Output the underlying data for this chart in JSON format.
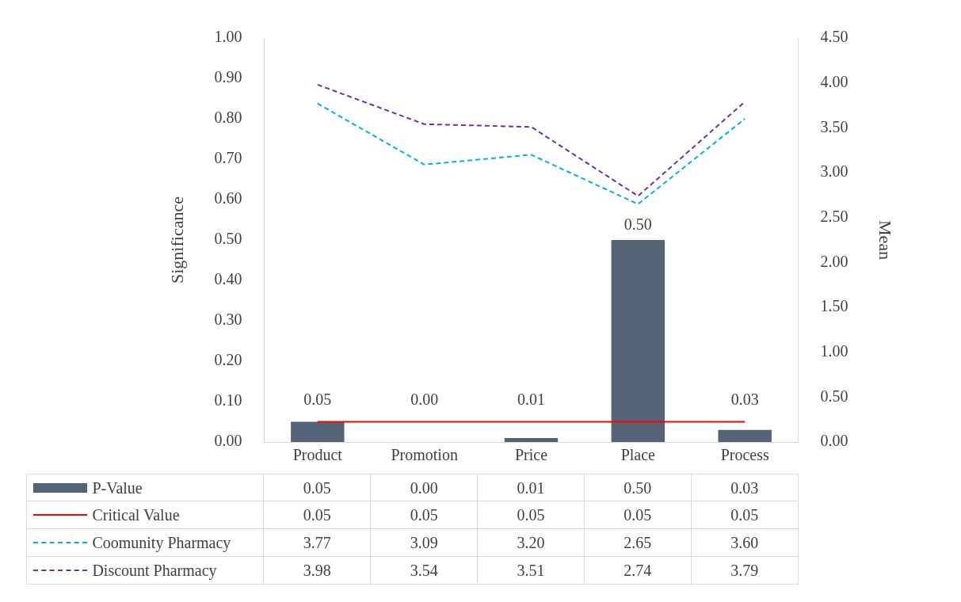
{
  "chart_data": {
    "type": "bar",
    "ylabel": "Significance",
    "y2label": "Mean",
    "categories": [
      "Product",
      "Promotion",
      "Price",
      "Place",
      "Process"
    ],
    "series": [
      {
        "name": "P-Value",
        "color": "#546375",
        "values": [
          0.05,
          0.0,
          0.01,
          0.5,
          0.03
        ],
        "value_labels": [
          "0.05",
          "0.00",
          "0.01",
          "0.50",
          "0.03"
        ]
      },
      {
        "name": "Critical Value",
        "type": "line",
        "color": "#ff0000",
        "line_style": "solid",
        "values": [
          0.05,
          0.05,
          0.05,
          0.05,
          0.05
        ],
        "value_labels": [
          "0.05",
          "0.05",
          "0.05",
          "0.05",
          "0.05"
        ]
      },
      {
        "name": "Coomunity Pharmacy",
        "type": "line",
        "axis": "y2",
        "color": "#00b0f0",
        "line_style": "dashed",
        "values": [
          3.77,
          3.09,
          3.2,
          2.65,
          3.6
        ],
        "value_labels": [
          "3.77",
          "3.09",
          "3.20",
          "2.65",
          "3.60"
        ]
      },
      {
        "name": "Discount Pharmacy",
        "type": "line",
        "axis": "y2",
        "color": "#7030a0",
        "line_style": "dashed",
        "values": [
          3.98,
          3.54,
          3.51,
          2.74,
          3.79
        ],
        "value_labels": [
          "3.98",
          "3.54",
          "3.51",
          "2.74",
          "3.79"
        ]
      }
    ],
    "ylim": [
      0,
      1
    ],
    "yticks": [
      {
        "value": 0,
        "label": "0.00"
      },
      {
        "value": 0.1,
        "label": "0.10"
      },
      {
        "value": 0.2,
        "label": "0.20"
      },
      {
        "value": 0.3,
        "label": "0.30"
      },
      {
        "value": 0.4,
        "label": "0.40"
      },
      {
        "value": 0.5,
        "label": "0.50"
      },
      {
        "value": 0.6,
        "label": "0.60"
      },
      {
        "value": 0.7,
        "label": "0.70"
      },
      {
        "value": 0.8,
        "label": "0.80"
      },
      {
        "value": 0.9,
        "label": "0.90"
      },
      {
        "value": 1,
        "label": "1.00"
      }
    ],
    "y2lim": [
      0,
      4.5
    ],
    "y2ticks": [
      {
        "value": 0,
        "label": "0.00"
      },
      {
        "value": 0.5,
        "label": "0.50"
      },
      {
        "value": 1,
        "label": "1.00"
      },
      {
        "value": 1.5,
        "label": "1.50"
      },
      {
        "value": 2,
        "label": "2.00"
      },
      {
        "value": 2.5,
        "label": "2.50"
      },
      {
        "value": 3,
        "label": "3.00"
      },
      {
        "value": 3.5,
        "label": "3.50"
      },
      {
        "value": 4,
        "label": "4.00"
      },
      {
        "value": 4.5,
        "label": "4.50"
      }
    ],
    "grid": false,
    "legend": "bottom",
    "marker": "none"
  }
}
